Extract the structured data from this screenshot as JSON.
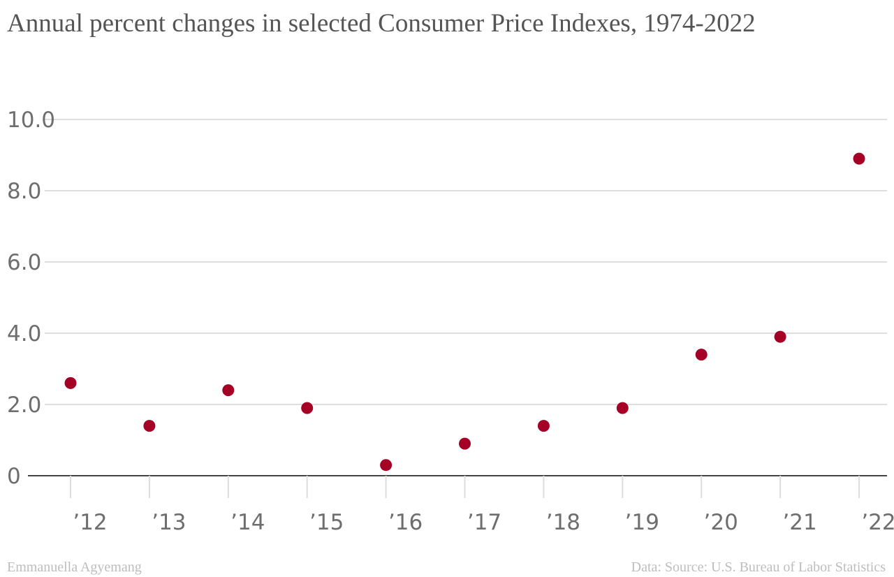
{
  "title": "Annual percent changes in selected Consumer Price Indexes, 1974-2022",
  "footer": {
    "credit": "Emmanuella Agyemang",
    "source": "Data: Source: U.S. Bureau of Labor Statistics"
  },
  "colors": {
    "point": "#a50026",
    "grid": "#dddddd",
    "zero_line": "#444444",
    "tick_text": "#6e6e6e",
    "title_text": "#555555",
    "footer_text": "#bdbdbd"
  },
  "chart_data": {
    "type": "scatter",
    "title": "Annual percent changes in selected Consumer Price Indexes, 1974-2022",
    "xlabel": "",
    "ylabel": "",
    "x_tick_labels": [
      "’12",
      "’13",
      "’14",
      "’15",
      "’16",
      "’17",
      "’18",
      "’19",
      "’20",
      "’21",
      "’22"
    ],
    "y_tick_labels": [
      "0",
      "2.0",
      "4.0",
      "6.0",
      "8.0",
      "10.0"
    ],
    "y_ticks": [
      0,
      2,
      4,
      6,
      8,
      10
    ],
    "ylim": [
      0,
      10
    ],
    "xlim": [
      2012,
      2022
    ],
    "grid": true,
    "series": [
      {
        "x": [
          2012,
          2013,
          2014,
          2015,
          2016,
          2017,
          2018,
          2019,
          2020,
          2021,
          2022
        ],
        "y": [
          2.6,
          1.4,
          2.4,
          1.9,
          0.3,
          0.9,
          1.4,
          1.9,
          3.4,
          3.9,
          8.9
        ]
      }
    ]
  }
}
